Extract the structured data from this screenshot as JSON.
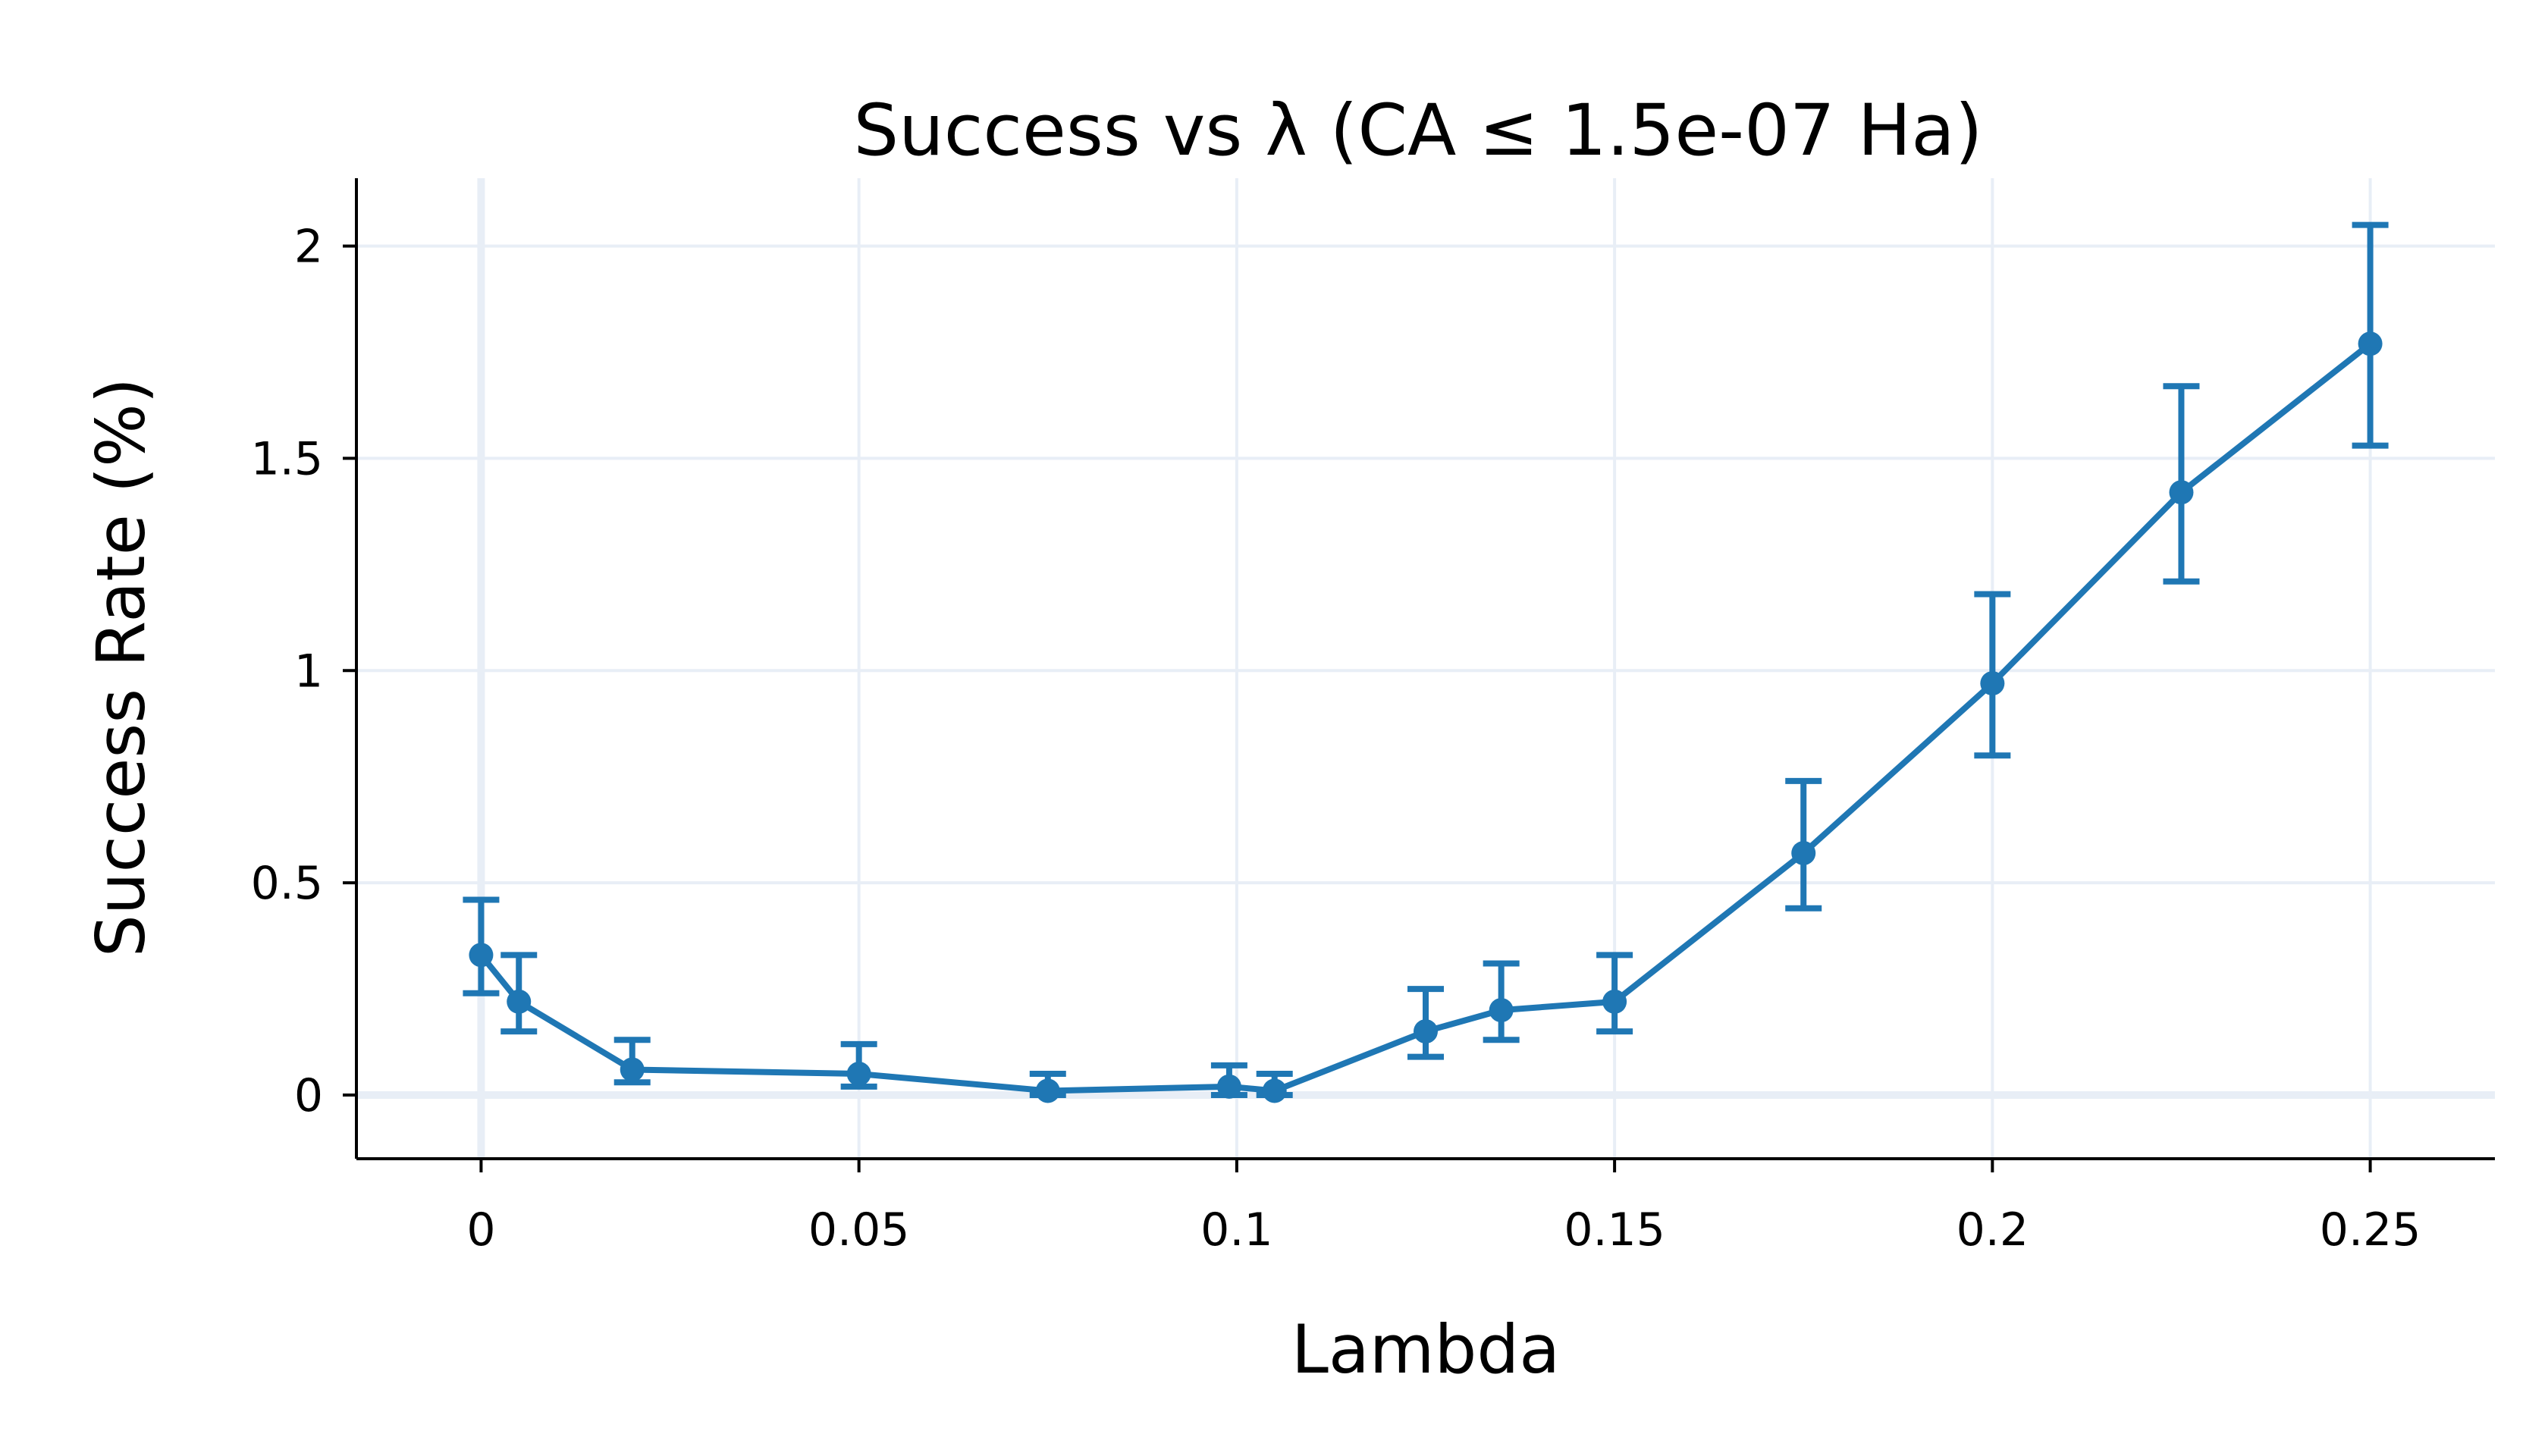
{
  "chart_data": {
    "type": "line",
    "title": "Success vs λ (CA ≤ 1.5e-07 Ha)",
    "xlabel": "Lambda",
    "ylabel": "Success Rate (%)",
    "xlim": [
      -0.0165,
      0.2665
    ],
    "ylim": [
      -0.15,
      2.16
    ],
    "grid": true,
    "x_ticks": [
      0,
      0.05,
      0.1,
      0.15,
      0.2,
      0.25
    ],
    "x_tick_labels": [
      "0",
      "0.05",
      "0.1",
      "0.15",
      "0.2",
      "0.25"
    ],
    "y_ticks": [
      0,
      0.5,
      1,
      1.5,
      2
    ],
    "y_tick_labels": [
      "0",
      "0.5",
      "1",
      "1.5",
      "2"
    ],
    "series": [
      {
        "name": "Success rate",
        "color": "#1f77b4",
        "x": [
          0,
          0.005,
          0.02,
          0.05,
          0.075,
          0.099,
          0.105,
          0.125,
          0.135,
          0.15,
          0.175,
          0.2,
          0.225,
          0.25
        ],
        "y": [
          0.33,
          0.22,
          0.06,
          0.05,
          0.01,
          0.02,
          0.01,
          0.15,
          0.2,
          0.22,
          0.57,
          0.97,
          1.42,
          1.77
        ],
        "error_low": [
          0.24,
          0.15,
          0.03,
          0.02,
          0.0,
          0.0,
          0.0,
          0.09,
          0.13,
          0.15,
          0.44,
          0.8,
          1.21,
          1.53
        ],
        "error_high": [
          0.46,
          0.33,
          0.13,
          0.12,
          0.05,
          0.07,
          0.05,
          0.25,
          0.31,
          0.33,
          0.74,
          1.18,
          1.67,
          2.05
        ]
      }
    ]
  }
}
